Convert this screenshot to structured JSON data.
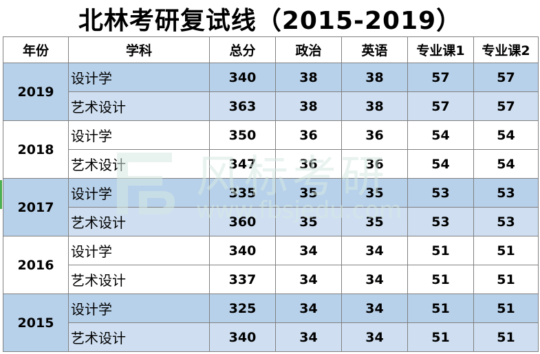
{
  "title": "北林考研复试线（2015-2019）",
  "headers": [
    "年份",
    "学科",
    "总分",
    "政治",
    "英语",
    "专业课1",
    "专业课2"
  ],
  "years": [
    {
      "year": "2019",
      "rows": [
        {
          "subject": "设计学",
          "total": "340",
          "politics": "38",
          "english": "38",
          "major1": "57",
          "major2": "57"
        },
        {
          "subject": "艺术设计",
          "total": "363",
          "politics": "38",
          "english": "38",
          "major1": "57",
          "major2": "57"
        }
      ]
    },
    {
      "year": "2018",
      "rows": [
        {
          "subject": "设计学",
          "total": "350",
          "politics": "36",
          "english": "36",
          "major1": "54",
          "major2": "54"
        },
        {
          "subject": "艺术设计",
          "total": "347",
          "politics": "36",
          "english": "36",
          "major1": "54",
          "major2": "54"
        }
      ]
    },
    {
      "year": "2017",
      "rows": [
        {
          "subject": "设计学",
          "total": "335",
          "politics": "35",
          "english": "35",
          "major1": "53",
          "major2": "53"
        },
        {
          "subject": "艺术设计",
          "total": "360",
          "politics": "35",
          "english": "35",
          "major1": "53",
          "major2": "53"
        }
      ]
    },
    {
      "year": "2016",
      "rows": [
        {
          "subject": "设计学",
          "total": "340",
          "politics": "34",
          "english": "34",
          "major1": "51",
          "major2": "51"
        },
        {
          "subject": "艺术设计",
          "total": "337",
          "politics": "34",
          "english": "34",
          "major1": "51",
          "major2": "51"
        }
      ]
    },
    {
      "year": "2015",
      "rows": [
        {
          "subject": "设计学",
          "total": "325",
          "politics": "34",
          "english": "34",
          "major1": "51",
          "major2": "51"
        },
        {
          "subject": "艺术设计",
          "total": "340",
          "politics": "34",
          "english": "34",
          "major1": "51",
          "major2": "51"
        }
      ]
    }
  ],
  "watermark": {
    "brand": "风标考研",
    "url": "www.fbsjedu.com",
    "icon": "fb-logo-icon"
  },
  "colors": {
    "shade_dark": "#b8d1ea",
    "shade_light": "#cfdff1",
    "watermark": "#d6e9e3",
    "marker": "#4caf50"
  }
}
